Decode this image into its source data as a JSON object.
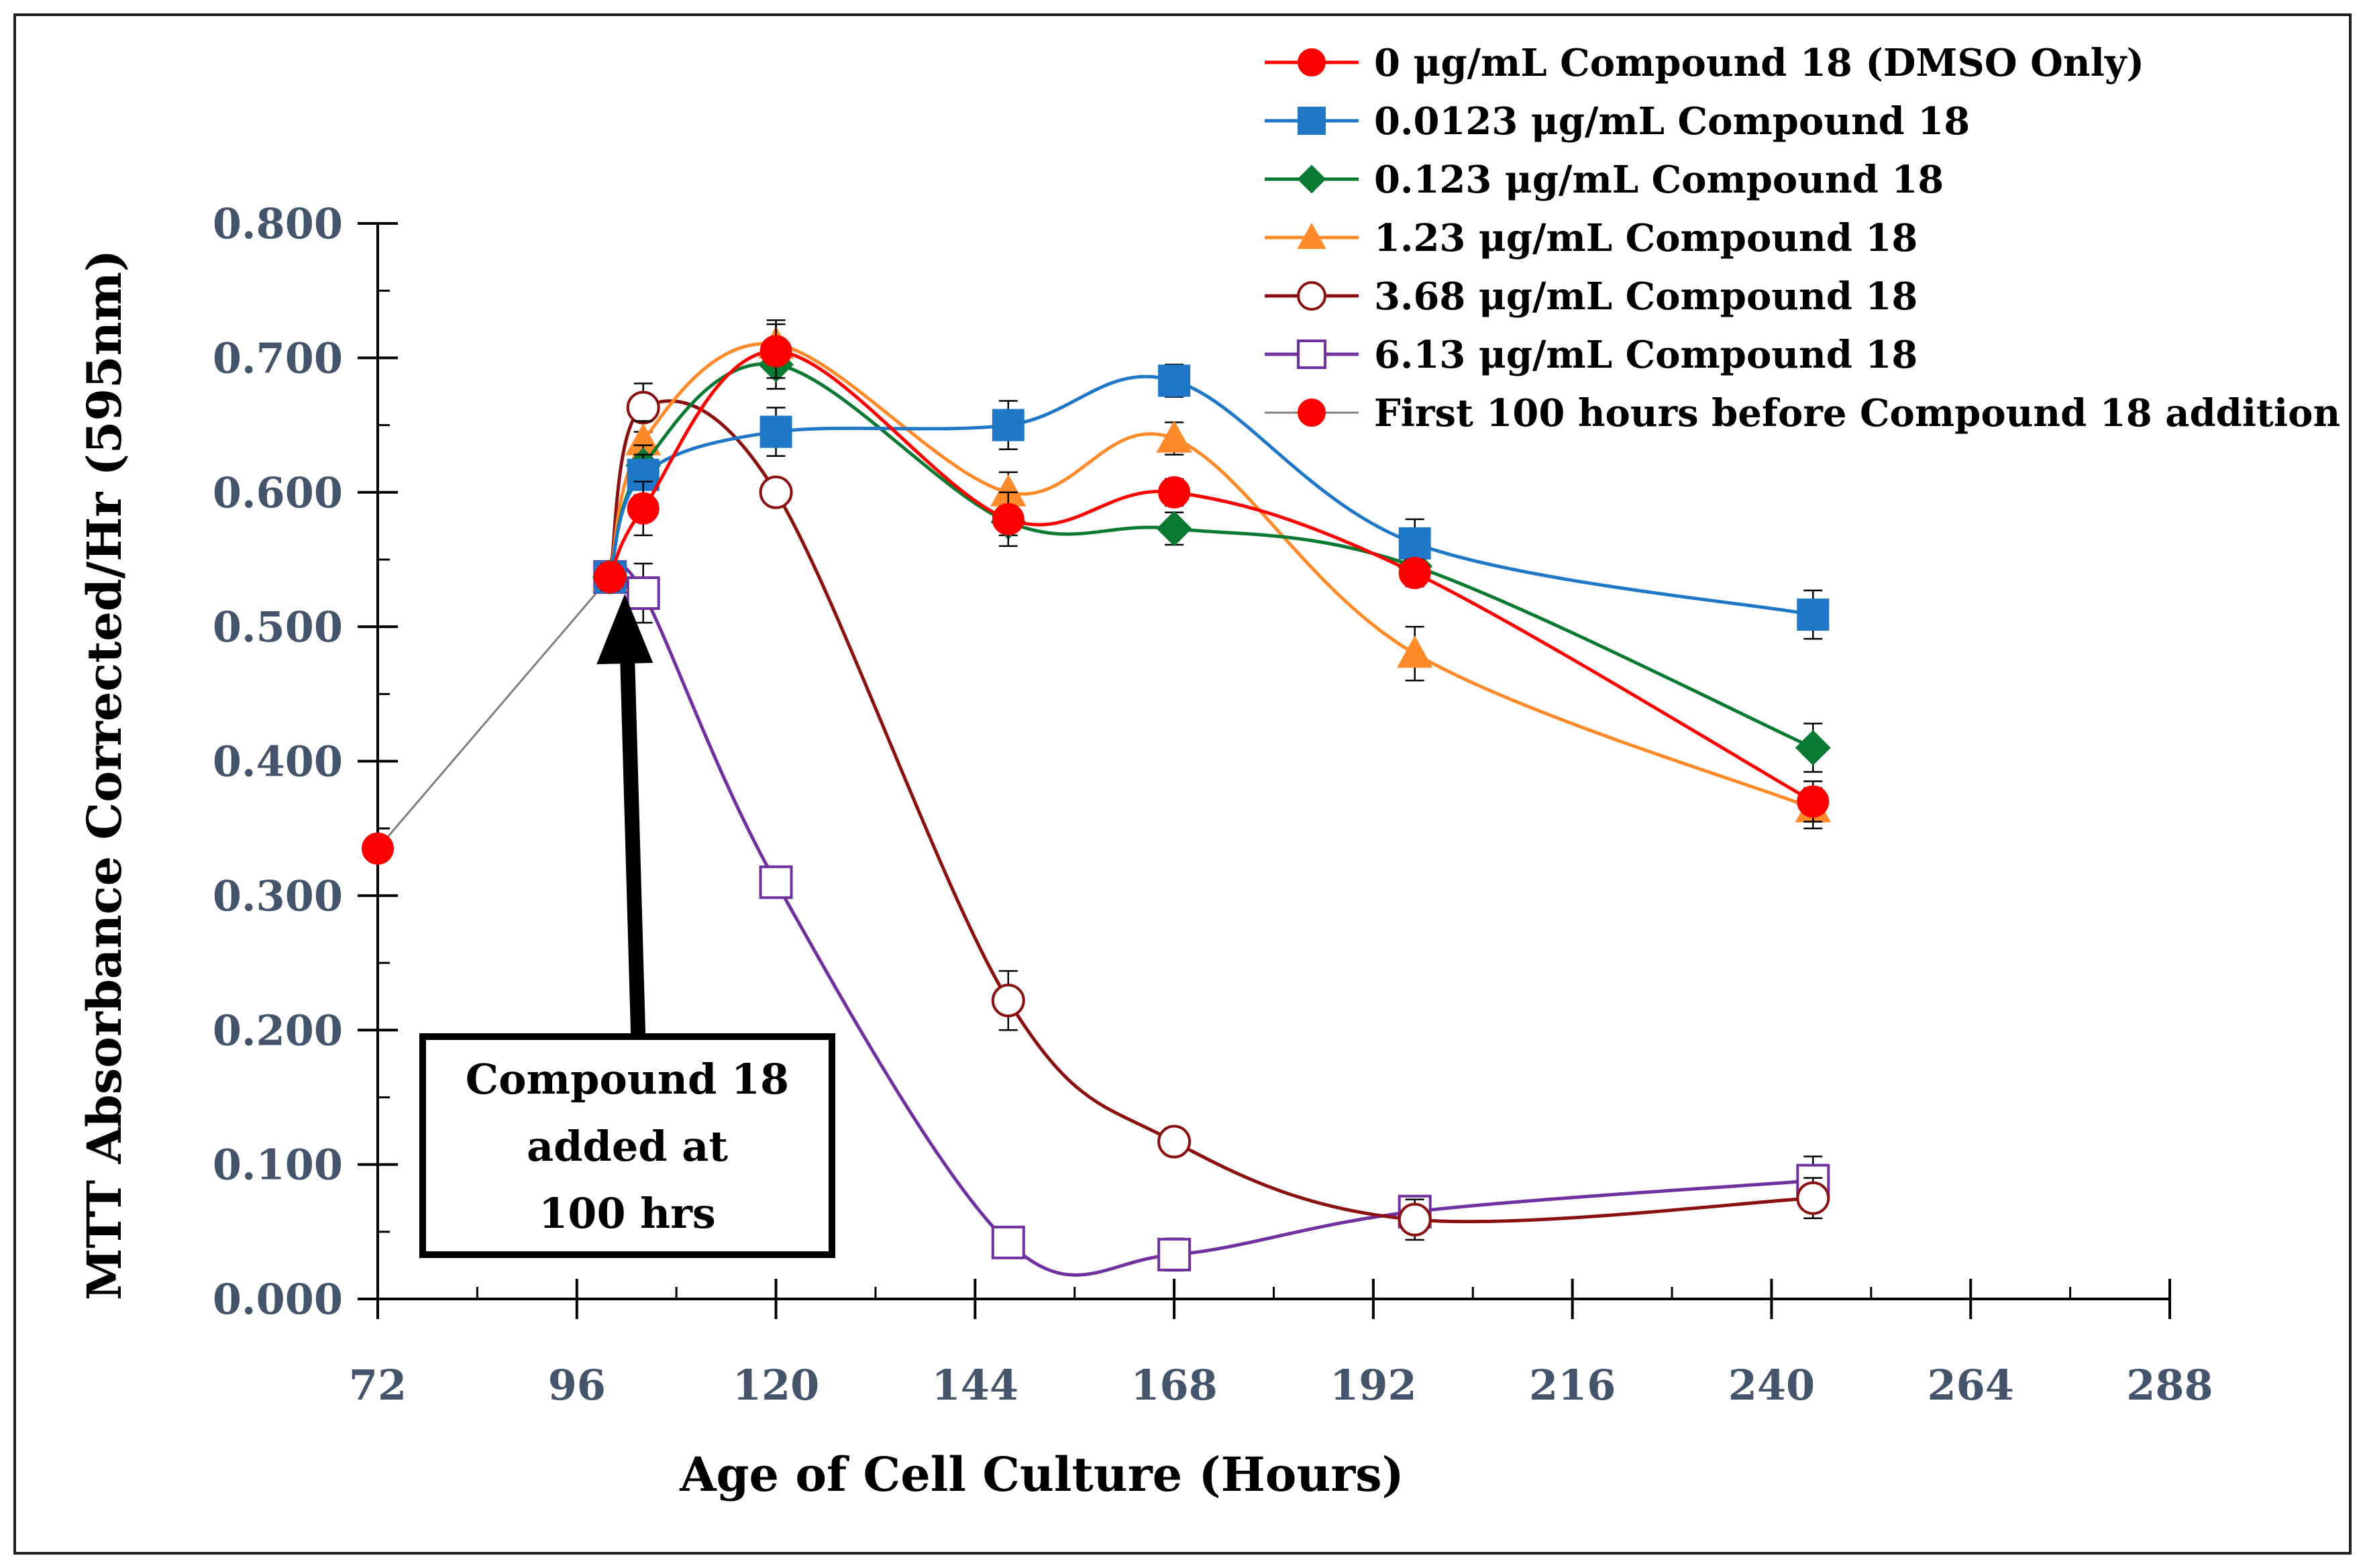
{
  "chart_data": {
    "type": "line",
    "title": "",
    "xlabel": "Age of Cell Culture (Hours)",
    "ylabel": "MTT Absorbance Corrected/Hr (595nm)",
    "xlim": [
      72,
      288
    ],
    "ylim": [
      0,
      0.8
    ],
    "x_ticks": [
      "72",
      "96",
      "120",
      "144",
      "168",
      "192",
      "216",
      "240",
      "264",
      "288"
    ],
    "y_ticks": [
      "0.000",
      "0.100",
      "0.200",
      "0.300",
      "0.400",
      "0.500",
      "0.600",
      "0.700",
      "0.800"
    ],
    "grid": false,
    "legend_position": "top-right",
    "series": [
      {
        "name": "0 μg/mL Compound 18 (DMSO Only)",
        "color": "#ff0000",
        "marker": "circle",
        "filled": true,
        "x": [
          100,
          104,
          120,
          148,
          168,
          197,
          245
        ],
        "y": [
          0.537,
          0.588,
          0.705,
          0.58,
          0.6,
          0.54,
          0.37
        ],
        "err": [
          0.01,
          0.02,
          0.02,
          0.02,
          0.01,
          0.01,
          0.015
        ]
      },
      {
        "name": "0.0123 μg/mL Compound 18",
        "color": "#1f77c8",
        "marker": "square",
        "filled": true,
        "x": [
          100,
          104,
          120,
          148,
          168,
          197,
          245
        ],
        "y": [
          0.537,
          0.613,
          0.645,
          0.65,
          0.683,
          0.562,
          0.509
        ],
        "err": [
          0.01,
          0.015,
          0.018,
          0.018,
          0.012,
          0.018,
          0.018
        ]
      },
      {
        "name": "0.123 μg/mL Compound 18",
        "color": "#0a7a32",
        "marker": "diamond",
        "filled": true,
        "x": [
          100,
          104,
          120,
          148,
          168,
          197,
          245
        ],
        "y": [
          0.537,
          0.62,
          0.695,
          0.578,
          0.573,
          0.545,
          0.41
        ],
        "err": [
          0.01,
          0.015,
          0.018,
          0.01,
          0.012,
          0.012,
          0.018
        ]
      },
      {
        "name": "1.23 μg/mL Compound 18",
        "color": "#ff8a2a",
        "marker": "triangle",
        "filled": true,
        "x": [
          100,
          104,
          120,
          148,
          168,
          197,
          245
        ],
        "y": [
          0.537,
          0.638,
          0.71,
          0.6,
          0.64,
          0.48,
          0.365
        ],
        "err": [
          0.01,
          0.015,
          0.018,
          0.015,
          0.012,
          0.02,
          0.015
        ]
      },
      {
        "name": "3.68 μg/mL Compound 18",
        "color": "#8b1010",
        "marker": "circle",
        "filled": false,
        "x": [
          100,
          104,
          120,
          148,
          168,
          197,
          245
        ],
        "y": [
          0.537,
          0.663,
          0.6,
          0.222,
          0.117,
          0.059,
          0.075
        ],
        "err": [
          0.01,
          0.018,
          0.01,
          0.022,
          0.01,
          0.015,
          0.015
        ]
      },
      {
        "name": "6.13 μg/mL Compound 18",
        "color": "#7030a0",
        "marker": "square",
        "filled": false,
        "x": [
          100,
          104,
          120,
          148,
          168,
          197,
          245
        ],
        "y": [
          0.537,
          0.525,
          0.31,
          0.042,
          0.033,
          0.065,
          0.088
        ],
        "err": [
          0.01,
          0.022,
          0.01,
          0.01,
          0.012,
          0.01,
          0.018
        ]
      },
      {
        "name": "First 100 hours before Compound 18 addition",
        "color": "#ff0000",
        "marker": "circle",
        "filled": true,
        "line_color": "#7f7f7f",
        "straight": true,
        "x": [
          72,
          100
        ],
        "y": [
          0.335,
          0.537
        ],
        "err": [
          0,
          0
        ]
      }
    ],
    "annotation": {
      "lines": [
        "Compound 18",
        "added at",
        "100 hrs"
      ],
      "arrow_x": 100
    }
  }
}
